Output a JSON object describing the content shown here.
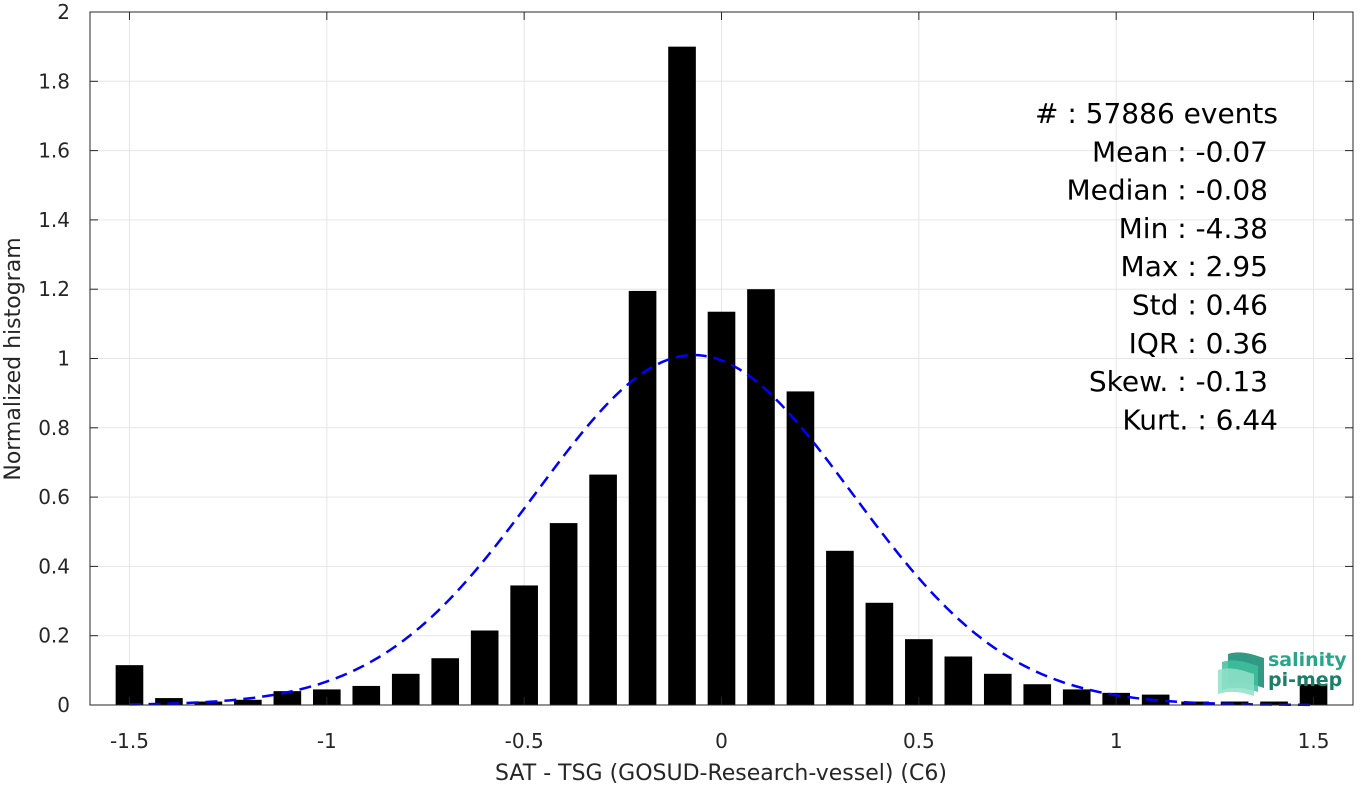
{
  "chart_data": {
    "type": "bar",
    "xlabel": "SAT - TSG (GOSUD-Research-vessel) (C6)",
    "ylabel": "Normalized histogram",
    "xlim": [
      -1.6,
      1.6
    ],
    "ylim": [
      0,
      2
    ],
    "x_ticks": [
      -1.5,
      -1,
      -0.5,
      0,
      0.5,
      1,
      1.5
    ],
    "x_tick_labels": [
      "-1.5",
      "-1",
      "-0.5",
      "0",
      "0.5",
      "1",
      "1.5"
    ],
    "y_ticks": [
      0,
      0.2,
      0.4,
      0.6,
      0.8,
      1,
      1.2,
      1.4,
      1.6,
      1.8,
      2
    ],
    "y_tick_labels": [
      "0",
      "0.2",
      "0.4",
      "0.6",
      "0.8",
      "1",
      "1.2",
      "1.4",
      "1.6",
      "1.8",
      "2"
    ],
    "grid": true,
    "bin_width": 0.1,
    "bin_centers": [
      -1.5,
      -1.4,
      -1.3,
      -1.2,
      -1.1,
      -1.0,
      -0.9,
      -0.8,
      -0.7,
      -0.6,
      -0.5,
      -0.4,
      -0.3,
      -0.2,
      -0.1,
      0.0,
      0.1,
      0.2,
      0.3,
      0.4,
      0.5,
      0.6,
      0.7,
      0.8,
      0.9,
      1.0,
      1.1,
      1.2,
      1.3,
      1.4,
      1.5
    ],
    "values": [
      0.115,
      0.02,
      0.01,
      0.015,
      0.04,
      0.045,
      0.055,
      0.09,
      0.135,
      0.215,
      0.345,
      0.525,
      0.665,
      1.195,
      1.9,
      1.135,
      1.2,
      0.905,
      0.445,
      0.295,
      0.19,
      0.14,
      0.09,
      0.06,
      0.045,
      0.035,
      0.03,
      0.01,
      0.01,
      0.01,
      0.06
    ],
    "fit": {
      "type": "gaussian",
      "mean": -0.07,
      "std": 0.4,
      "peak": 1.01,
      "color": "#0000ff",
      "style": "dashed"
    },
    "bar_color": "#000000",
    "stats": [
      "#  : 57886 events",
      "Mean : -0.07",
      "Median : -0.08",
      "Min : -4.38",
      "Max : 2.95",
      "Std : 0.46",
      "IQR : 0.36",
      "Skew. : -0.13",
      "Kurt. : 6.44"
    ]
  },
  "logo": {
    "line1": "salinity",
    "line2": "pi-mep",
    "color": "#2aa58a"
  }
}
